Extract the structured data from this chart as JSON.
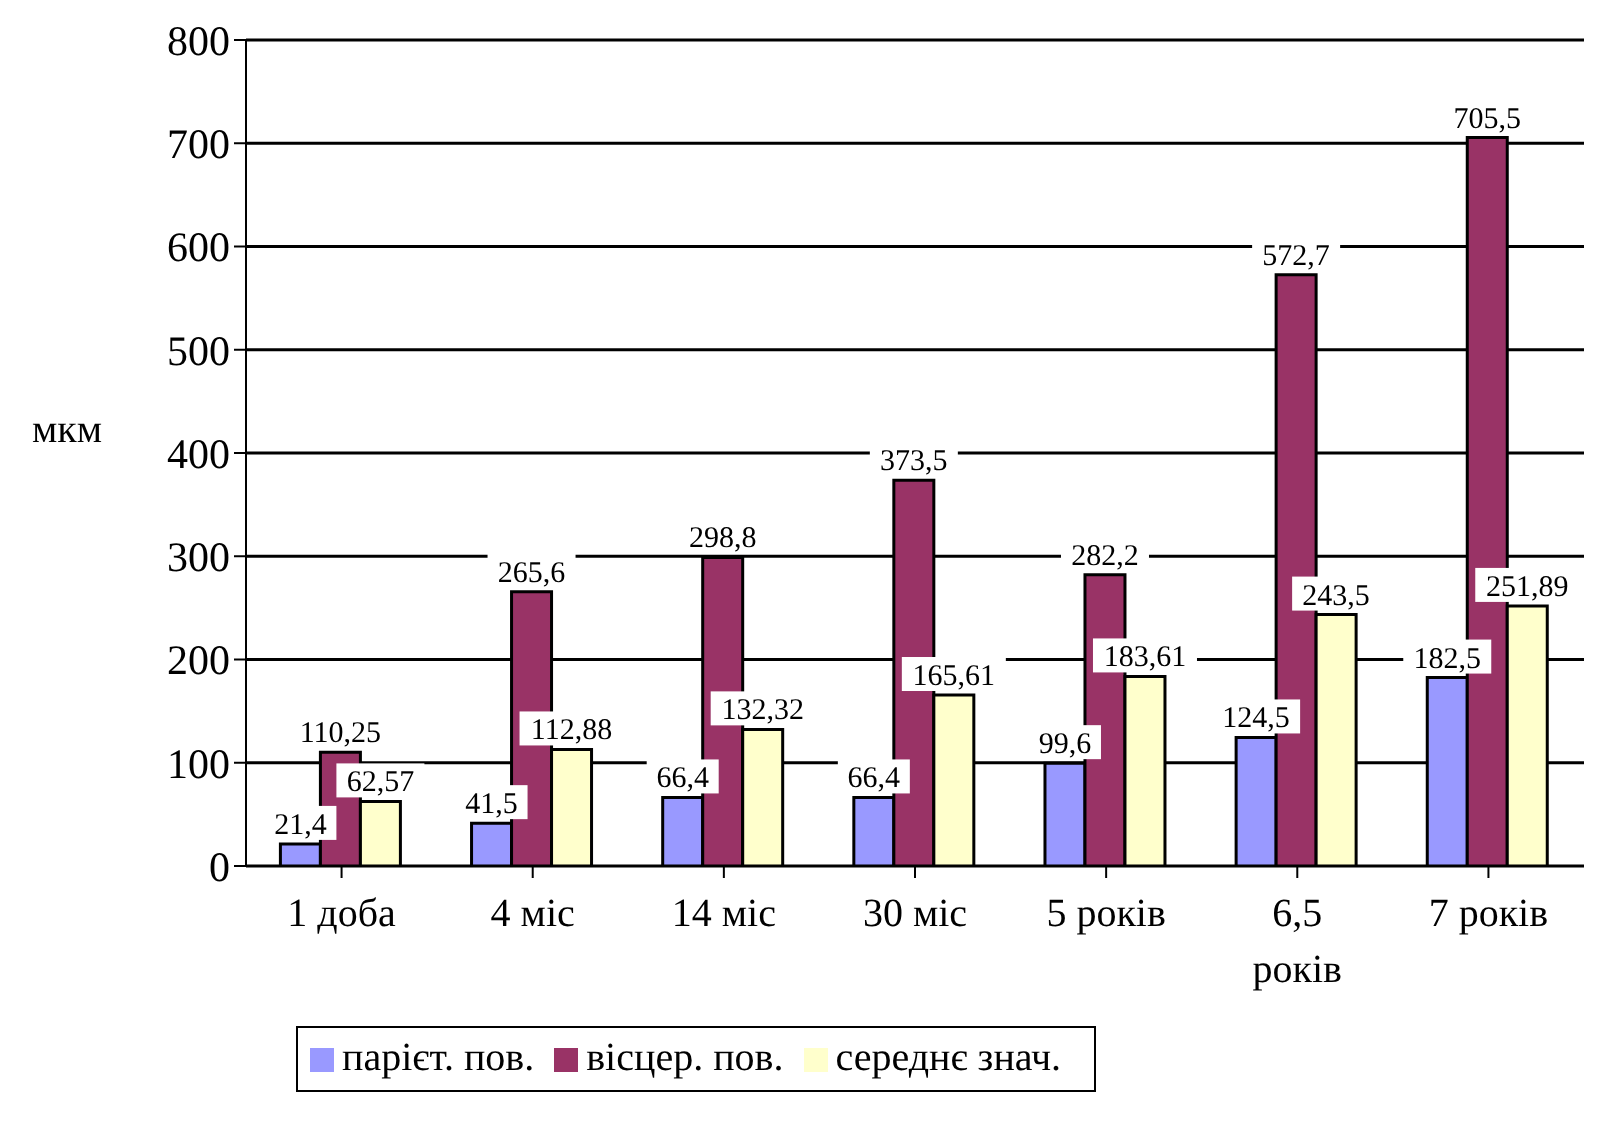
{
  "chart_data": {
    "type": "bar",
    "ylabel": "мкм",
    "categories": [
      "1 доба",
      "4 міс",
      "14 міс",
      "30 міс",
      "5 років",
      "6,5 років",
      "7 років"
    ],
    "series": [
      {
        "name": "парієт. пов.",
        "color": "#9999ff",
        "values": [
          21.4,
          41.5,
          66.4,
          66.4,
          99.6,
          124.5,
          182.5
        ],
        "value_labels": [
          "21,4",
          "41,5",
          "66,4",
          "66,4",
          "99,6",
          "124,5",
          "182,5"
        ]
      },
      {
        "name": "вісцер. пов.",
        "color": "#993366",
        "values": [
          110.25,
          265.6,
          298.8,
          373.5,
          282.2,
          572.7,
          705.5
        ],
        "value_labels": [
          "110,25",
          "265,6",
          "298,8",
          "373,5",
          "282,2",
          "572,7",
          "705,5"
        ]
      },
      {
        "name": "середнє знач.",
        "color": "#ffffcc",
        "values": [
          62.57,
          112.88,
          132.32,
          165.61,
          183.61,
          243.5,
          251.89
        ],
        "value_labels": [
          "62,57",
          "112,88",
          "132,32",
          "165,61",
          "183,61",
          "243,5",
          "251,89"
        ]
      }
    ],
    "ylim": [
      0,
      800
    ],
    "yticks": [
      0,
      100,
      200,
      300,
      400,
      500,
      600,
      700,
      800
    ],
    "grid": "y",
    "legend": "bottom"
  }
}
